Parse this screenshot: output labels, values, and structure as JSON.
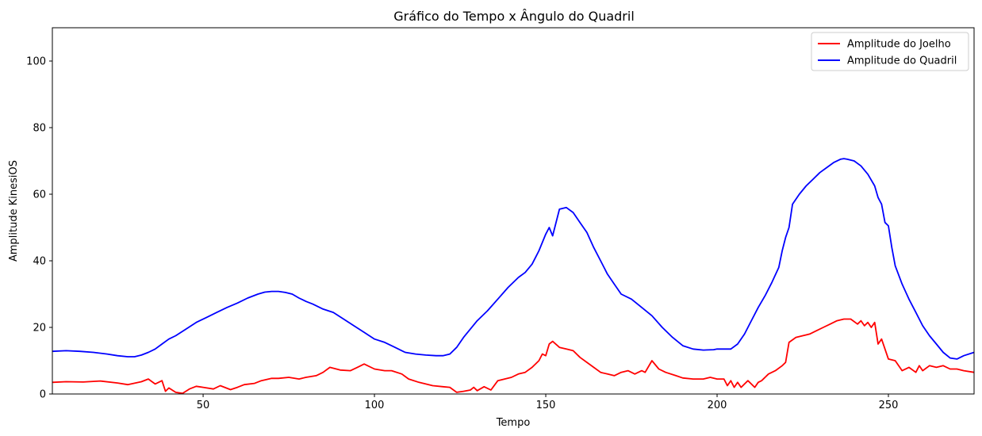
{
  "chart_data": {
    "type": "line",
    "title": "Gráfico do Tempo x Ângulo do Quadril",
    "xlabel": "Tempo",
    "ylabel": "Amplitude KinesiOS",
    "xlim": [
      6,
      275
    ],
    "ylim": [
      0,
      110
    ],
    "xticks": [
      50,
      100,
      150,
      200,
      250
    ],
    "yticks": [
      0,
      20,
      40,
      60,
      80,
      100
    ],
    "grid": false,
    "legend_position": "top-right",
    "series": [
      {
        "name": "Amplitude do Joelho",
        "color": "#ff0000",
        "x": [
          6,
          10,
          15,
          20,
          25,
          28,
          32,
          34,
          36,
          38,
          39,
          40,
          42,
          44,
          46,
          48,
          50,
          53,
          55,
          58,
          60,
          62,
          65,
          67,
          70,
          72,
          75,
          78,
          80,
          83,
          85,
          87,
          90,
          93,
          95,
          97,
          100,
          103,
          105,
          108,
          110,
          113,
          117,
          120,
          122,
          124,
          126,
          128,
          129,
          130,
          132,
          134,
          136,
          138,
          140,
          142,
          144,
          146,
          148,
          149,
          150,
          151,
          152,
          154,
          156,
          158,
          160,
          162,
          164,
          166,
          168,
          170,
          172,
          174,
          176,
          178,
          179,
          181,
          183,
          185,
          188,
          190,
          193,
          196,
          198,
          200,
          202,
          203,
          204,
          205,
          206,
          207,
          208,
          209,
          210,
          211,
          212,
          213,
          215,
          217,
          219,
          220,
          221,
          223,
          225,
          227,
          229,
          231,
          233,
          235,
          237,
          239,
          241,
          242,
          243,
          244,
          245,
          246,
          247,
          248,
          250,
          252,
          254,
          256,
          258,
          259,
          260,
          262,
          264,
          266,
          268,
          270,
          272,
          275
        ],
        "y": [
          3.5,
          3.7,
          3.6,
          3.9,
          3.3,
          2.8,
          3.7,
          4.5,
          3.0,
          4.0,
          0.8,
          1.8,
          0.5,
          0.2,
          1.5,
          2.3,
          2.0,
          1.5,
          2.5,
          1.3,
          2.0,
          2.8,
          3.2,
          4.0,
          4.7,
          4.7,
          5.0,
          4.5,
          5.0,
          5.5,
          6.5,
          8.0,
          7.2,
          7.0,
          8.0,
          9.0,
          7.5,
          7.0,
          7.0,
          6.0,
          4.5,
          3.5,
          2.5,
          2.2,
          2.0,
          0.5,
          0.8,
          1.2,
          2.0,
          1.0,
          2.2,
          1.2,
          4.0,
          4.5,
          5.0,
          6.0,
          6.5,
          8.0,
          10.0,
          12.0,
          11.5,
          15.0,
          15.8,
          14.0,
          13.5,
          13.0,
          11.0,
          9.5,
          8.0,
          6.5,
          6.0,
          5.5,
          6.5,
          7.0,
          6.0,
          7.0,
          6.5,
          10.0,
          7.5,
          6.5,
          5.5,
          4.8,
          4.5,
          4.5,
          5.0,
          4.5,
          4.5,
          2.5,
          4.0,
          2.0,
          3.5,
          2.0,
          3.0,
          4.0,
          3.0,
          2.0,
          3.5,
          4.0,
          6.0,
          7.0,
          8.5,
          9.5,
          15.5,
          17.0,
          17.5,
          18.0,
          19.0,
          20.0,
          21.0,
          22.0,
          22.5,
          22.5,
          21.0,
          22.0,
          20.5,
          21.5,
          20.0,
          21.5,
          15.0,
          16.5,
          10.5,
          10.0,
          7.0,
          8.0,
          6.5,
          8.5,
          7.0,
          8.5,
          8.0,
          8.5,
          7.5,
          7.5,
          7.0,
          6.5
        ]
      },
      {
        "name": "Amplitude do Quadril",
        "color": "#0000ff",
        "x": [
          6,
          10,
          14,
          18,
          22,
          25,
          28,
          30,
          32,
          34,
          36,
          38,
          40,
          42,
          45,
          48,
          51,
          54,
          57,
          60,
          63,
          66,
          68,
          70,
          72,
          74,
          76,
          78,
          80,
          82,
          85,
          88,
          91,
          94,
          97,
          100,
          103,
          106,
          109,
          112,
          115,
          118,
          120,
          122,
          124,
          126,
          128,
          130,
          133,
          136,
          139,
          142,
          144,
          146,
          147,
          148,
          149,
          150,
          151,
          152,
          154,
          156,
          158,
          160,
          162,
          164,
          166,
          168,
          170,
          172,
          175,
          178,
          181,
          184,
          187,
          190,
          193,
          196,
          199,
          200,
          202,
          204,
          206,
          208,
          210,
          212,
          214,
          216,
          218,
          219,
          220,
          221,
          222,
          224,
          226,
          228,
          230,
          232,
          234,
          236,
          237,
          238,
          240,
          242,
          244,
          246,
          247,
          248,
          249,
          250,
          251,
          252,
          254,
          256,
          258,
          260,
          262,
          264,
          266,
          268,
          270,
          272,
          275
        ],
        "y": [
          12.8,
          13.0,
          12.8,
          12.5,
          12.0,
          11.5,
          11.2,
          11.2,
          11.7,
          12.5,
          13.5,
          15.0,
          16.5,
          17.5,
          19.5,
          21.5,
          23.0,
          24.5,
          26.0,
          27.3,
          28.8,
          30.0,
          30.6,
          30.8,
          30.8,
          30.5,
          30.0,
          28.8,
          27.8,
          27.0,
          25.5,
          24.5,
          22.5,
          20.5,
          18.5,
          16.5,
          15.5,
          14.0,
          12.5,
          12.0,
          11.7,
          11.5,
          11.5,
          12.0,
          14.0,
          17.0,
          19.5,
          22.0,
          25.0,
          28.5,
          32.0,
          35.0,
          36.5,
          39.0,
          41.0,
          43.0,
          45.5,
          48.0,
          50.0,
          47.5,
          55.5,
          56.0,
          54.5,
          51.5,
          48.5,
          44.0,
          40.0,
          36.0,
          33.0,
          30.0,
          28.5,
          26.0,
          23.5,
          20.0,
          17.0,
          14.5,
          13.5,
          13.2,
          13.3,
          13.5,
          13.5,
          13.5,
          15.0,
          18.0,
          22.0,
          26.0,
          29.5,
          33.5,
          38.0,
          43.0,
          47.0,
          50.0,
          57.0,
          60.0,
          62.5,
          64.5,
          66.5,
          68.0,
          69.5,
          70.5,
          70.7,
          70.5,
          70.0,
          68.5,
          66.0,
          62.5,
          59.0,
          57.0,
          51.5,
          50.5,
          44.0,
          38.5,
          33.0,
          28.5,
          24.5,
          20.5,
          17.5,
          15.0,
          12.5,
          10.8,
          10.5,
          11.5,
          12.5
        ]
      }
    ]
  }
}
